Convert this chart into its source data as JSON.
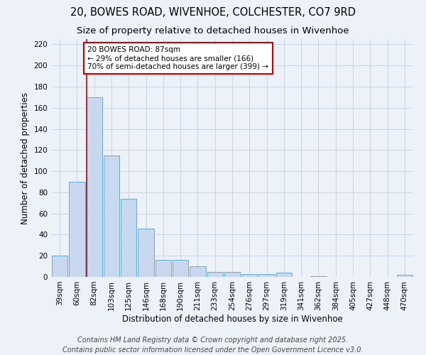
{
  "title_line1": "20, BOWES ROAD, WIVENHOE, COLCHESTER, CO7 9RD",
  "title_line2": "Size of property relative to detached houses in Wivenhoe",
  "xlabel": "Distribution of detached houses by size in Wivenhoe",
  "ylabel": "Number of detached properties",
  "categories": [
    "39sqm",
    "60sqm",
    "82sqm",
    "103sqm",
    "125sqm",
    "146sqm",
    "168sqm",
    "190sqm",
    "211sqm",
    "233sqm",
    "254sqm",
    "276sqm",
    "297sqm",
    "319sqm",
    "341sqm",
    "362sqm",
    "384sqm",
    "405sqm",
    "427sqm",
    "448sqm",
    "470sqm"
  ],
  "values": [
    20,
    90,
    170,
    115,
    74,
    46,
    16,
    16,
    10,
    5,
    5,
    3,
    3,
    4,
    0,
    1,
    0,
    0,
    0,
    0,
    2
  ],
  "bar_color": "#c8d8ef",
  "bar_edge_color": "#6aaad4",
  "grid_color": "#c8d4e8",
  "background_color": "#edf2f9",
  "property_line_index": 2,
  "annotation_text": "20 BOWES ROAD: 87sqm\n← 29% of detached houses are smaller (166)\n70% of semi-detached houses are larger (399) →",
  "annotation_box_color": "#ffffff",
  "annotation_box_edge": "#cc0000",
  "red_line_color": "#cc0000",
  "ylim": [
    0,
    225
  ],
  "yticks": [
    0,
    20,
    40,
    60,
    80,
    100,
    120,
    140,
    160,
    180,
    200,
    220
  ],
  "footer_line1": "Contains HM Land Registry data © Crown copyright and database right 2025.",
  "footer_line2": "Contains public sector information licensed under the Open Government Licence v3.0.",
  "title_fontsize": 10.5,
  "subtitle_fontsize": 9.5,
  "axis_label_fontsize": 8.5,
  "tick_fontsize": 7.5,
  "annotation_fontsize": 7.5,
  "footer_fontsize": 7
}
